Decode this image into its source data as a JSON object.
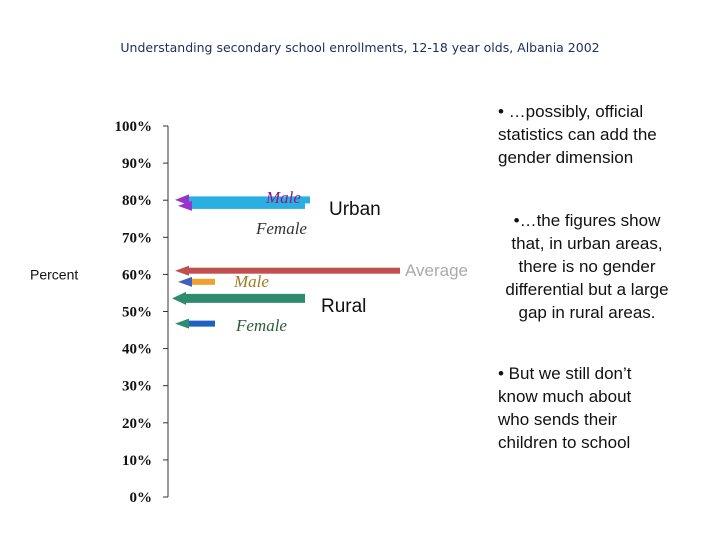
{
  "title": "Understanding secondary school enrollments, 12-18 year olds, Albania 2002",
  "bullets": {
    "b1": [
      "• …possibly, official",
      "statistics can add the",
      "gender dimension"
    ],
    "b2": [
      "•…the figures show",
      "that, in urban areas,",
      "there is no gender",
      "differential but a large",
      "gap in rural areas."
    ],
    "b3": [
      "• But we still don’t",
      "know much about",
      "who sends their",
      "children to school"
    ]
  },
  "chart_data": {
    "type": "bar",
    "ylabel": "Percent",
    "ylim": [
      0,
      100
    ],
    "yticks": [
      "0%",
      "10%",
      "20%",
      "30%",
      "40%",
      "50%",
      "60%",
      "70%",
      "80%",
      "90%",
      "100%"
    ],
    "series": [
      {
        "name": "Male",
        "group": "Urban",
        "value": 79,
        "color": "#2ab0e0",
        "marker": "#9933cc"
      },
      {
        "name": "Female",
        "group": "Urban",
        "value": 79,
        "color": "#2ab0e0",
        "marker": "#9933cc"
      },
      {
        "name": "Average",
        "group": "",
        "value": 61,
        "color": "#c0504d",
        "marker": "#c0504d"
      },
      {
        "name": "Male",
        "group": "Rural",
        "value": 58,
        "color": "#f0a030",
        "marker": "#4060c0"
      },
      {
        "name": "",
        "group": "Rural",
        "value": 53,
        "color": "#2e8b6e",
        "marker": "#2e8b6e"
      },
      {
        "name": "Female",
        "group": "Rural",
        "value": 47,
        "color": "#2060c0",
        "marker": "#2e8b6e"
      }
    ],
    "labels": {
      "urban": "Urban",
      "rural": "Rural",
      "average": "Average",
      "urban_male": "Male",
      "urban_female": "Female",
      "rural_male": "Male",
      "rural_female": "Female"
    }
  }
}
